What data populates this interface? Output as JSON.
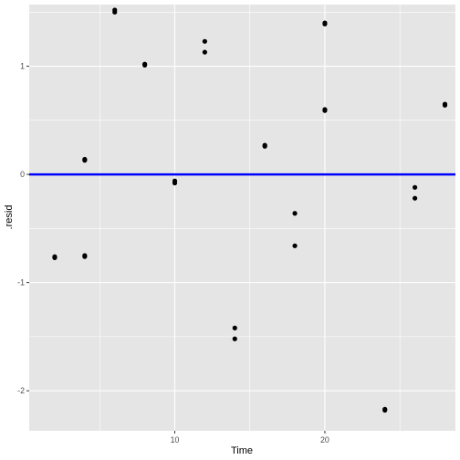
{
  "chart_data": {
    "type": "scatter",
    "title": "",
    "xlabel": "Time",
    "ylabel": ".resid",
    "xlim": [
      0.3,
      28.7
    ],
    "ylim": [
      -2.37,
      1.57
    ],
    "x_ticks": [
      10,
      20
    ],
    "x_tick_labels": [
      "10",
      "20"
    ],
    "y_ticks": [
      -2,
      -1,
      0,
      1
    ],
    "y_tick_labels": [
      "-2",
      "-1",
      "0",
      "1"
    ],
    "grid": true,
    "panel_color": "#e5e5e5",
    "grid_color": "#ffffff",
    "point_color": "#000000",
    "hline": {
      "y": 0,
      "color": "#0000ff"
    },
    "points": [
      {
        "x": 2,
        "y": -0.77
      },
      {
        "x": 2,
        "y": -0.76
      },
      {
        "x": 4,
        "y": 0.14
      },
      {
        "x": 4,
        "y": 0.13
      },
      {
        "x": 4,
        "y": -0.76
      },
      {
        "x": 4,
        "y": -0.75
      },
      {
        "x": 6,
        "y": 1.52
      },
      {
        "x": 6,
        "y": 1.5
      },
      {
        "x": 8,
        "y": 1.02
      },
      {
        "x": 8,
        "y": 1.01
      },
      {
        "x": 10,
        "y": -0.06
      },
      {
        "x": 10,
        "y": -0.08
      },
      {
        "x": 12,
        "y": 1.23
      },
      {
        "x": 12,
        "y": 1.13
      },
      {
        "x": 14,
        "y": -1.42
      },
      {
        "x": 14,
        "y": -1.52
      },
      {
        "x": 16,
        "y": 0.27
      },
      {
        "x": 16,
        "y": 0.26
      },
      {
        "x": 18,
        "y": -0.36
      },
      {
        "x": 18,
        "y": -0.66
      },
      {
        "x": 20,
        "y": 1.4
      },
      {
        "x": 20,
        "y": 1.39
      },
      {
        "x": 20,
        "y": 0.6
      },
      {
        "x": 20,
        "y": 0.59
      },
      {
        "x": 24,
        "y": -2.17
      },
      {
        "x": 24,
        "y": -2.18
      },
      {
        "x": 26,
        "y": -0.12
      },
      {
        "x": 26,
        "y": -0.22
      },
      {
        "x": 28,
        "y": 0.65
      },
      {
        "x": 28,
        "y": 0.64
      }
    ]
  }
}
